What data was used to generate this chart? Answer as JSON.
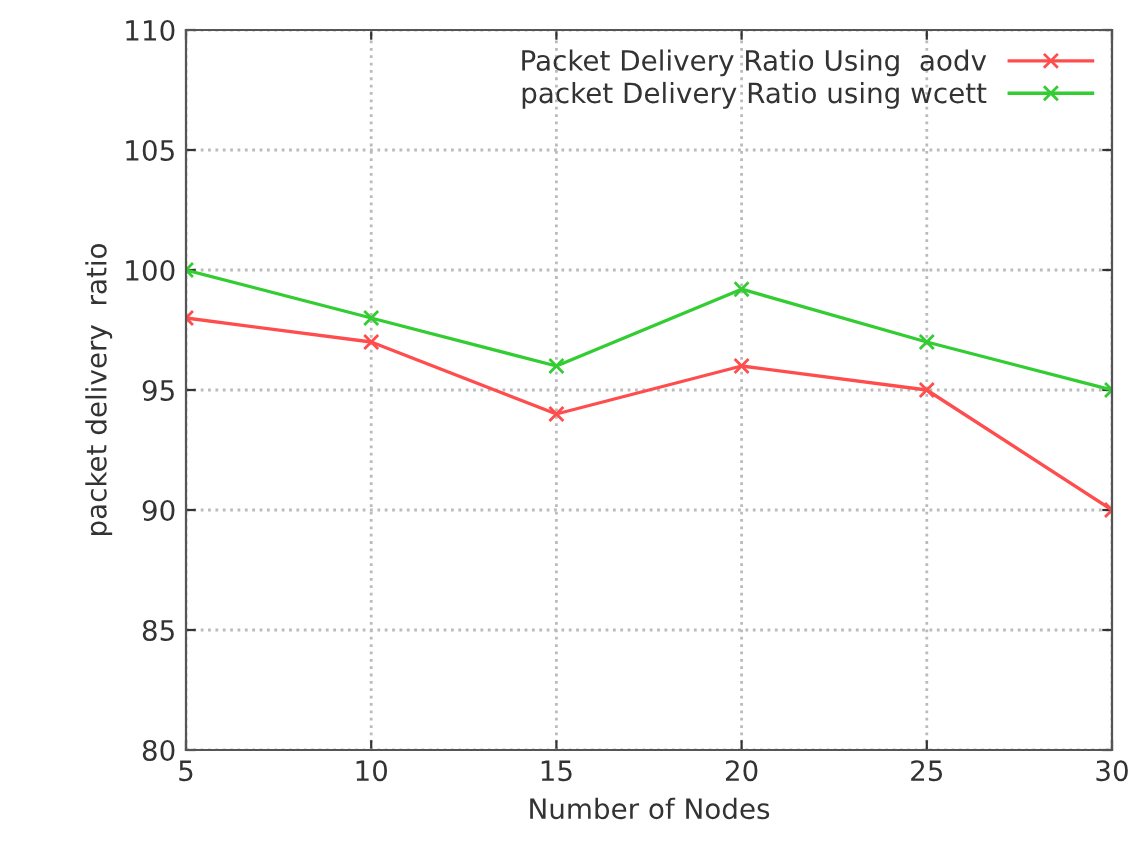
{
  "chart_data": {
    "type": "line",
    "xlabel": "Number of Nodes",
    "ylabel": "packet delivery  ratio",
    "x": [
      5,
      10,
      15,
      20,
      25,
      30
    ],
    "series": [
      {
        "name": "Packet Delivery Ratio Using  aodv",
        "color": "#ff4d4d",
        "values": [
          98,
          97,
          94,
          96,
          95,
          90
        ]
      },
      {
        "name": "packet Delivery Ratio using wcett",
        "color": "#33cc33",
        "values": [
          100,
          98,
          96,
          99.2,
          97,
          95
        ]
      }
    ],
    "xlim": [
      5,
      30
    ],
    "xticks": [
      5,
      10,
      15,
      20,
      25,
      30
    ],
    "ylim": [
      80,
      110
    ],
    "yticks": [
      80,
      85,
      90,
      95,
      100,
      105,
      110
    ],
    "grid": true,
    "legend": "top right",
    "marker": "cross",
    "line_style": "solid"
  }
}
